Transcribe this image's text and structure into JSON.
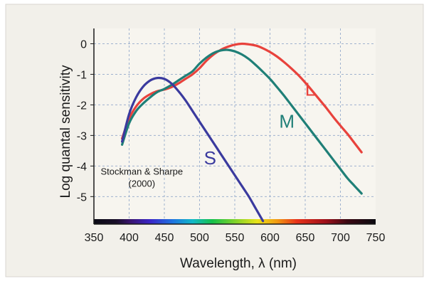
{
  "chart_data": {
    "type": "line",
    "title": "",
    "xlabel": "Wavelength, λ (nm)",
    "ylabel": "Log quantal sensitivity",
    "xlim": [
      350,
      750
    ],
    "ylim": [
      -5.9,
      0.5
    ],
    "x_ticks": [
      350,
      400,
      450,
      500,
      550,
      600,
      650,
      700,
      750
    ],
    "y_ticks": [
      0,
      -1,
      -2,
      -3,
      -4,
      -5
    ],
    "grid": true,
    "x_axis_color_bar": "visible spectrum",
    "annotation": "Stockman & Sharpe\n(2000)",
    "series": [
      {
        "name": "L",
        "color": "#e8423c",
        "x": [
          390,
          400,
          410,
          420,
          430,
          440,
          450,
          460,
          470,
          480,
          490,
          500,
          510,
          520,
          530,
          540,
          550,
          560,
          570,
          580,
          590,
          600,
          610,
          620,
          630,
          640,
          650,
          660,
          670,
          680,
          690,
          700,
          710,
          720,
          730
        ],
        "y": [
          -3.1,
          -2.45,
          -2.05,
          -1.8,
          -1.65,
          -1.55,
          -1.5,
          -1.42,
          -1.3,
          -1.15,
          -1.0,
          -0.8,
          -0.55,
          -0.35,
          -0.2,
          -0.1,
          -0.03,
          0.0,
          -0.02,
          -0.06,
          -0.15,
          -0.27,
          -0.42,
          -0.6,
          -0.8,
          -1.02,
          -1.27,
          -1.54,
          -1.82,
          -2.1,
          -2.4,
          -2.68,
          -2.95,
          -3.25,
          -3.55
        ]
      },
      {
        "name": "M",
        "color": "#1f7f77",
        "x": [
          390,
          400,
          410,
          420,
          430,
          440,
          450,
          460,
          470,
          480,
          490,
          500,
          510,
          520,
          530,
          540,
          550,
          560,
          570,
          580,
          590,
          600,
          610,
          620,
          630,
          640,
          650,
          660,
          670,
          680,
          690,
          700,
          710,
          720,
          730
        ],
        "y": [
          -3.3,
          -2.6,
          -2.2,
          -1.95,
          -1.75,
          -1.58,
          -1.48,
          -1.35,
          -1.2,
          -1.05,
          -0.9,
          -0.65,
          -0.45,
          -0.3,
          -0.22,
          -0.2,
          -0.25,
          -0.35,
          -0.5,
          -0.7,
          -0.92,
          -1.15,
          -1.42,
          -1.7,
          -2.0,
          -2.3,
          -2.6,
          -2.9,
          -3.2,
          -3.5,
          -3.8,
          -4.1,
          -4.4,
          -4.65,
          -4.9
        ]
      },
      {
        "name": "S",
        "color": "#3a3a9e",
        "x": [
          390,
          400,
          410,
          420,
          430,
          440,
          450,
          460,
          470,
          480,
          490,
          500,
          510,
          520,
          530,
          540,
          550,
          560,
          570,
          580,
          590
        ],
        "y": [
          -3.2,
          -2.3,
          -1.75,
          -1.4,
          -1.2,
          -1.12,
          -1.15,
          -1.3,
          -1.55,
          -1.85,
          -2.2,
          -2.55,
          -2.9,
          -3.25,
          -3.6,
          -3.95,
          -4.3,
          -4.65,
          -5.0,
          -5.4,
          -5.8
        ]
      }
    ]
  }
}
